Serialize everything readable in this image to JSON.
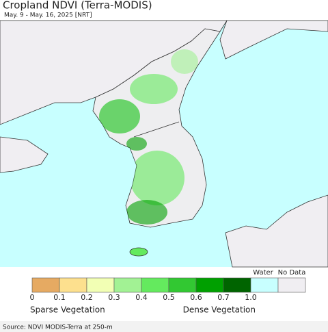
{
  "header": {
    "title": "Cropland NDVI (Terra-MODIS)",
    "subtitle": "May. 9 - May. 16, 2025 [NRT]"
  },
  "legend": {
    "colors": [
      "#e6aa62",
      "#fde08e",
      "#f2ffb4",
      "#a2f294",
      "#64ea5e",
      "#32c832",
      "#00a000",
      "#006400",
      "#c8ffff",
      "#f0eef2"
    ],
    "labels": [
      "0",
      "0.1",
      "0.2",
      "0.3",
      "0.4",
      "0.5",
      "0.6",
      "0.7",
      "1.0"
    ],
    "water": "Water",
    "no_data": "No Data",
    "left_caption": "Sparse Vegetation",
    "right_caption": "Dense Vegetation"
  },
  "source": "Source: NDVI MODIS-Terra at 250-m"
}
